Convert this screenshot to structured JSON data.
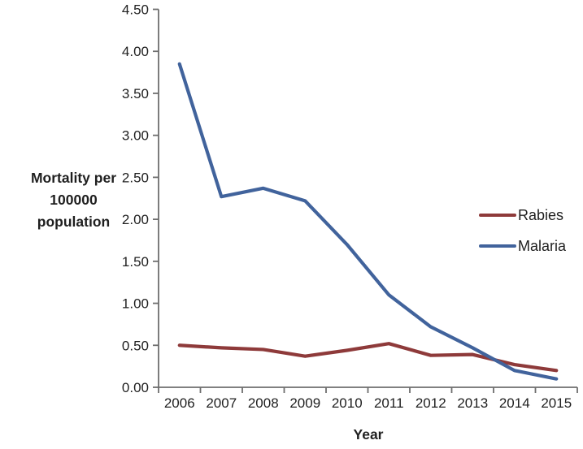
{
  "chart_data": {
    "type": "line",
    "title": "",
    "categories": [
      "2006",
      "2007",
      "2008",
      "2009",
      "2010",
      "2011",
      "2012",
      "2013",
      "2014",
      "2015"
    ],
    "series": [
      {
        "name": "Rabies",
        "color": "#8E3A3A",
        "values": [
          0.5,
          0.47,
          0.45,
          0.37,
          0.44,
          0.52,
          0.38,
          0.39,
          0.27,
          0.2
        ]
      },
      {
        "name": "Malaria",
        "color": "#41639C",
        "values": [
          3.85,
          2.27,
          2.37,
          2.22,
          1.7,
          1.1,
          0.72,
          0.47,
          0.2,
          0.1
        ]
      }
    ],
    "xlabel": "Year",
    "ylabel": "Mortality per 100000 population",
    "ylim": [
      0,
      4.5
    ],
    "y_tick_step": 0.5,
    "y_tick_labels": [
      "0.00",
      "0.50",
      "1.00",
      "1.50",
      "2.00",
      "2.50",
      "3.00",
      "3.50",
      "4.00",
      "4.50"
    ],
    "grid": false,
    "legend_position": "right",
    "axis_color": "#6E6E6E",
    "tick_label_color": "#1F1F1F"
  }
}
